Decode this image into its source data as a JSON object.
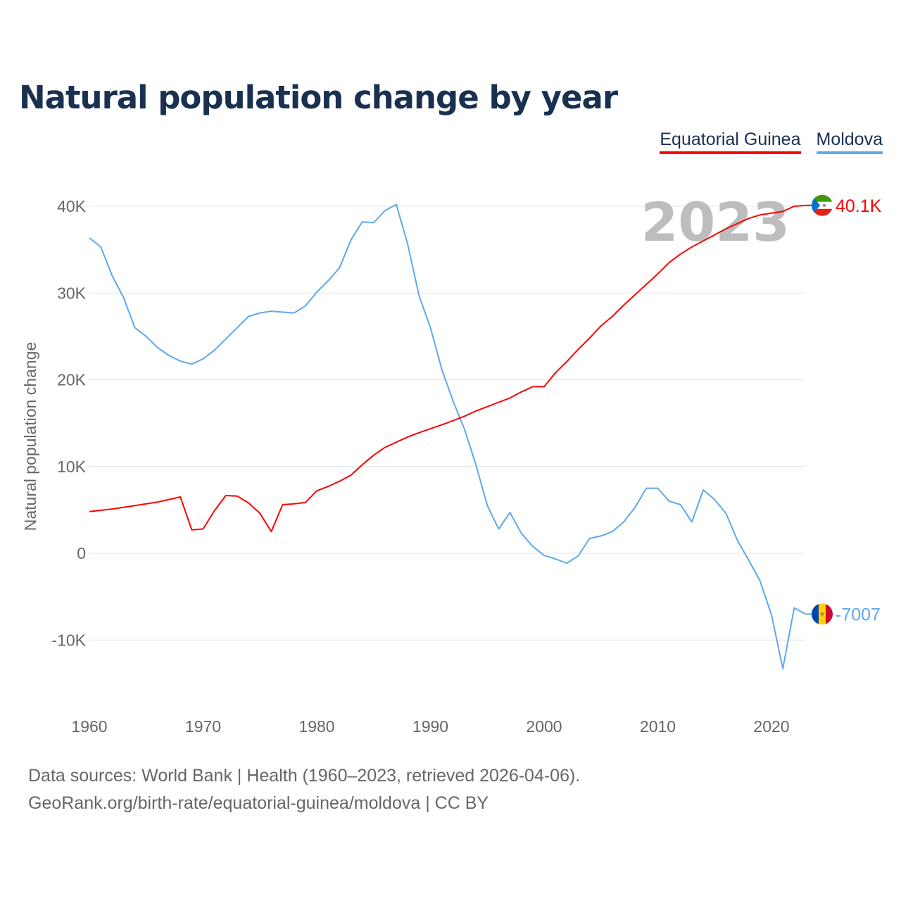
{
  "title": "Natural population change by year",
  "footer": {
    "line1": "Data sources: World Bank | Health (1960–2023, retrieved 2026-04-06).",
    "line2": "GeoRank.org/birth-rate/equatorial-guinea/moldova | CC BY"
  },
  "chart_data": {
    "type": "line",
    "title": "Natural population change by year",
    "xlabel": "",
    "ylabel": "Natural population change",
    "year_watermark": "2023",
    "xlim": [
      1960,
      2023
    ],
    "ylim": [
      -15000,
      43000
    ],
    "x_ticks": [
      1960,
      1970,
      1980,
      1990,
      2000,
      2010,
      2020
    ],
    "x_tick_labels": [
      "1960",
      "1970",
      "1980",
      "1990",
      "2000",
      "2010",
      "2020"
    ],
    "y_ticks": [
      -10000,
      0,
      10000,
      20000,
      30000,
      40000
    ],
    "y_tick_labels": [
      "-10K",
      "0",
      "10K",
      "20K",
      "30K",
      "40K"
    ],
    "grid": true,
    "legend_placement": "top-right",
    "x": [
      1960,
      1961,
      1962,
      1963,
      1964,
      1965,
      1966,
      1967,
      1968,
      1969,
      1970,
      1971,
      1972,
      1973,
      1974,
      1975,
      1976,
      1977,
      1978,
      1979,
      1980,
      1981,
      1982,
      1983,
      1984,
      1985,
      1986,
      1987,
      1988,
      1989,
      1990,
      1991,
      1992,
      1993,
      1994,
      1995,
      1996,
      1997,
      1998,
      1999,
      2000,
      2001,
      2002,
      2003,
      2004,
      2005,
      2006,
      2007,
      2008,
      2009,
      2010,
      2011,
      2012,
      2013,
      2014,
      2015,
      2016,
      2017,
      2018,
      2019,
      2020,
      2021,
      2022,
      2023
    ],
    "series": [
      {
        "name": "Equatorial Guinea",
        "color": "#ff0000",
        "end_label": "40.1K",
        "flag": "equatorial-guinea-flag",
        "values": [
          4800,
          4950,
          5100,
          5300,
          5500,
          5700,
          5900,
          6200,
          6500,
          2700,
          2800,
          4900,
          6650,
          6600,
          5800,
          4600,
          2500,
          5600,
          5700,
          5850,
          7200,
          7700,
          8300,
          9000,
          10200,
          11300,
          12200,
          12800,
          13400,
          13900,
          14350,
          14800,
          15300,
          15800,
          16400,
          16900,
          17400,
          17900,
          18600,
          19200,
          19200,
          20800,
          22100,
          23500,
          24800,
          26200,
          27300,
          28600,
          29800,
          31000,
          32200,
          33500,
          34500,
          35300,
          36000,
          36700,
          37400,
          38000,
          38600,
          39000,
          39200,
          39400,
          40000,
          40100
        ]
      },
      {
        "name": "Moldova",
        "color": "#5fa8ee",
        "end_label": "-7007",
        "flag": "moldova-flag",
        "values": [
          36350,
          35300,
          32000,
          29500,
          26000,
          25000,
          23700,
          22800,
          22150,
          21800,
          22400,
          23400,
          24700,
          26000,
          27300,
          27700,
          27900,
          27800,
          27700,
          28500,
          30100,
          31400,
          32900,
          36100,
          38200,
          38100,
          39500,
          40200,
          35600,
          29700,
          26000,
          21200,
          17500,
          14300,
          10200,
          5500,
          2800,
          4700,
          2300,
          800,
          -250,
          -650,
          -1150,
          -300,
          1700,
          2000,
          2500,
          3600,
          5300,
          7500,
          7500,
          6000,
          5600,
          3600,
          7300,
          6200,
          4600,
          1500,
          -800,
          -3200,
          -7100,
          -13300,
          -6300,
          -7007
        ]
      }
    ]
  }
}
